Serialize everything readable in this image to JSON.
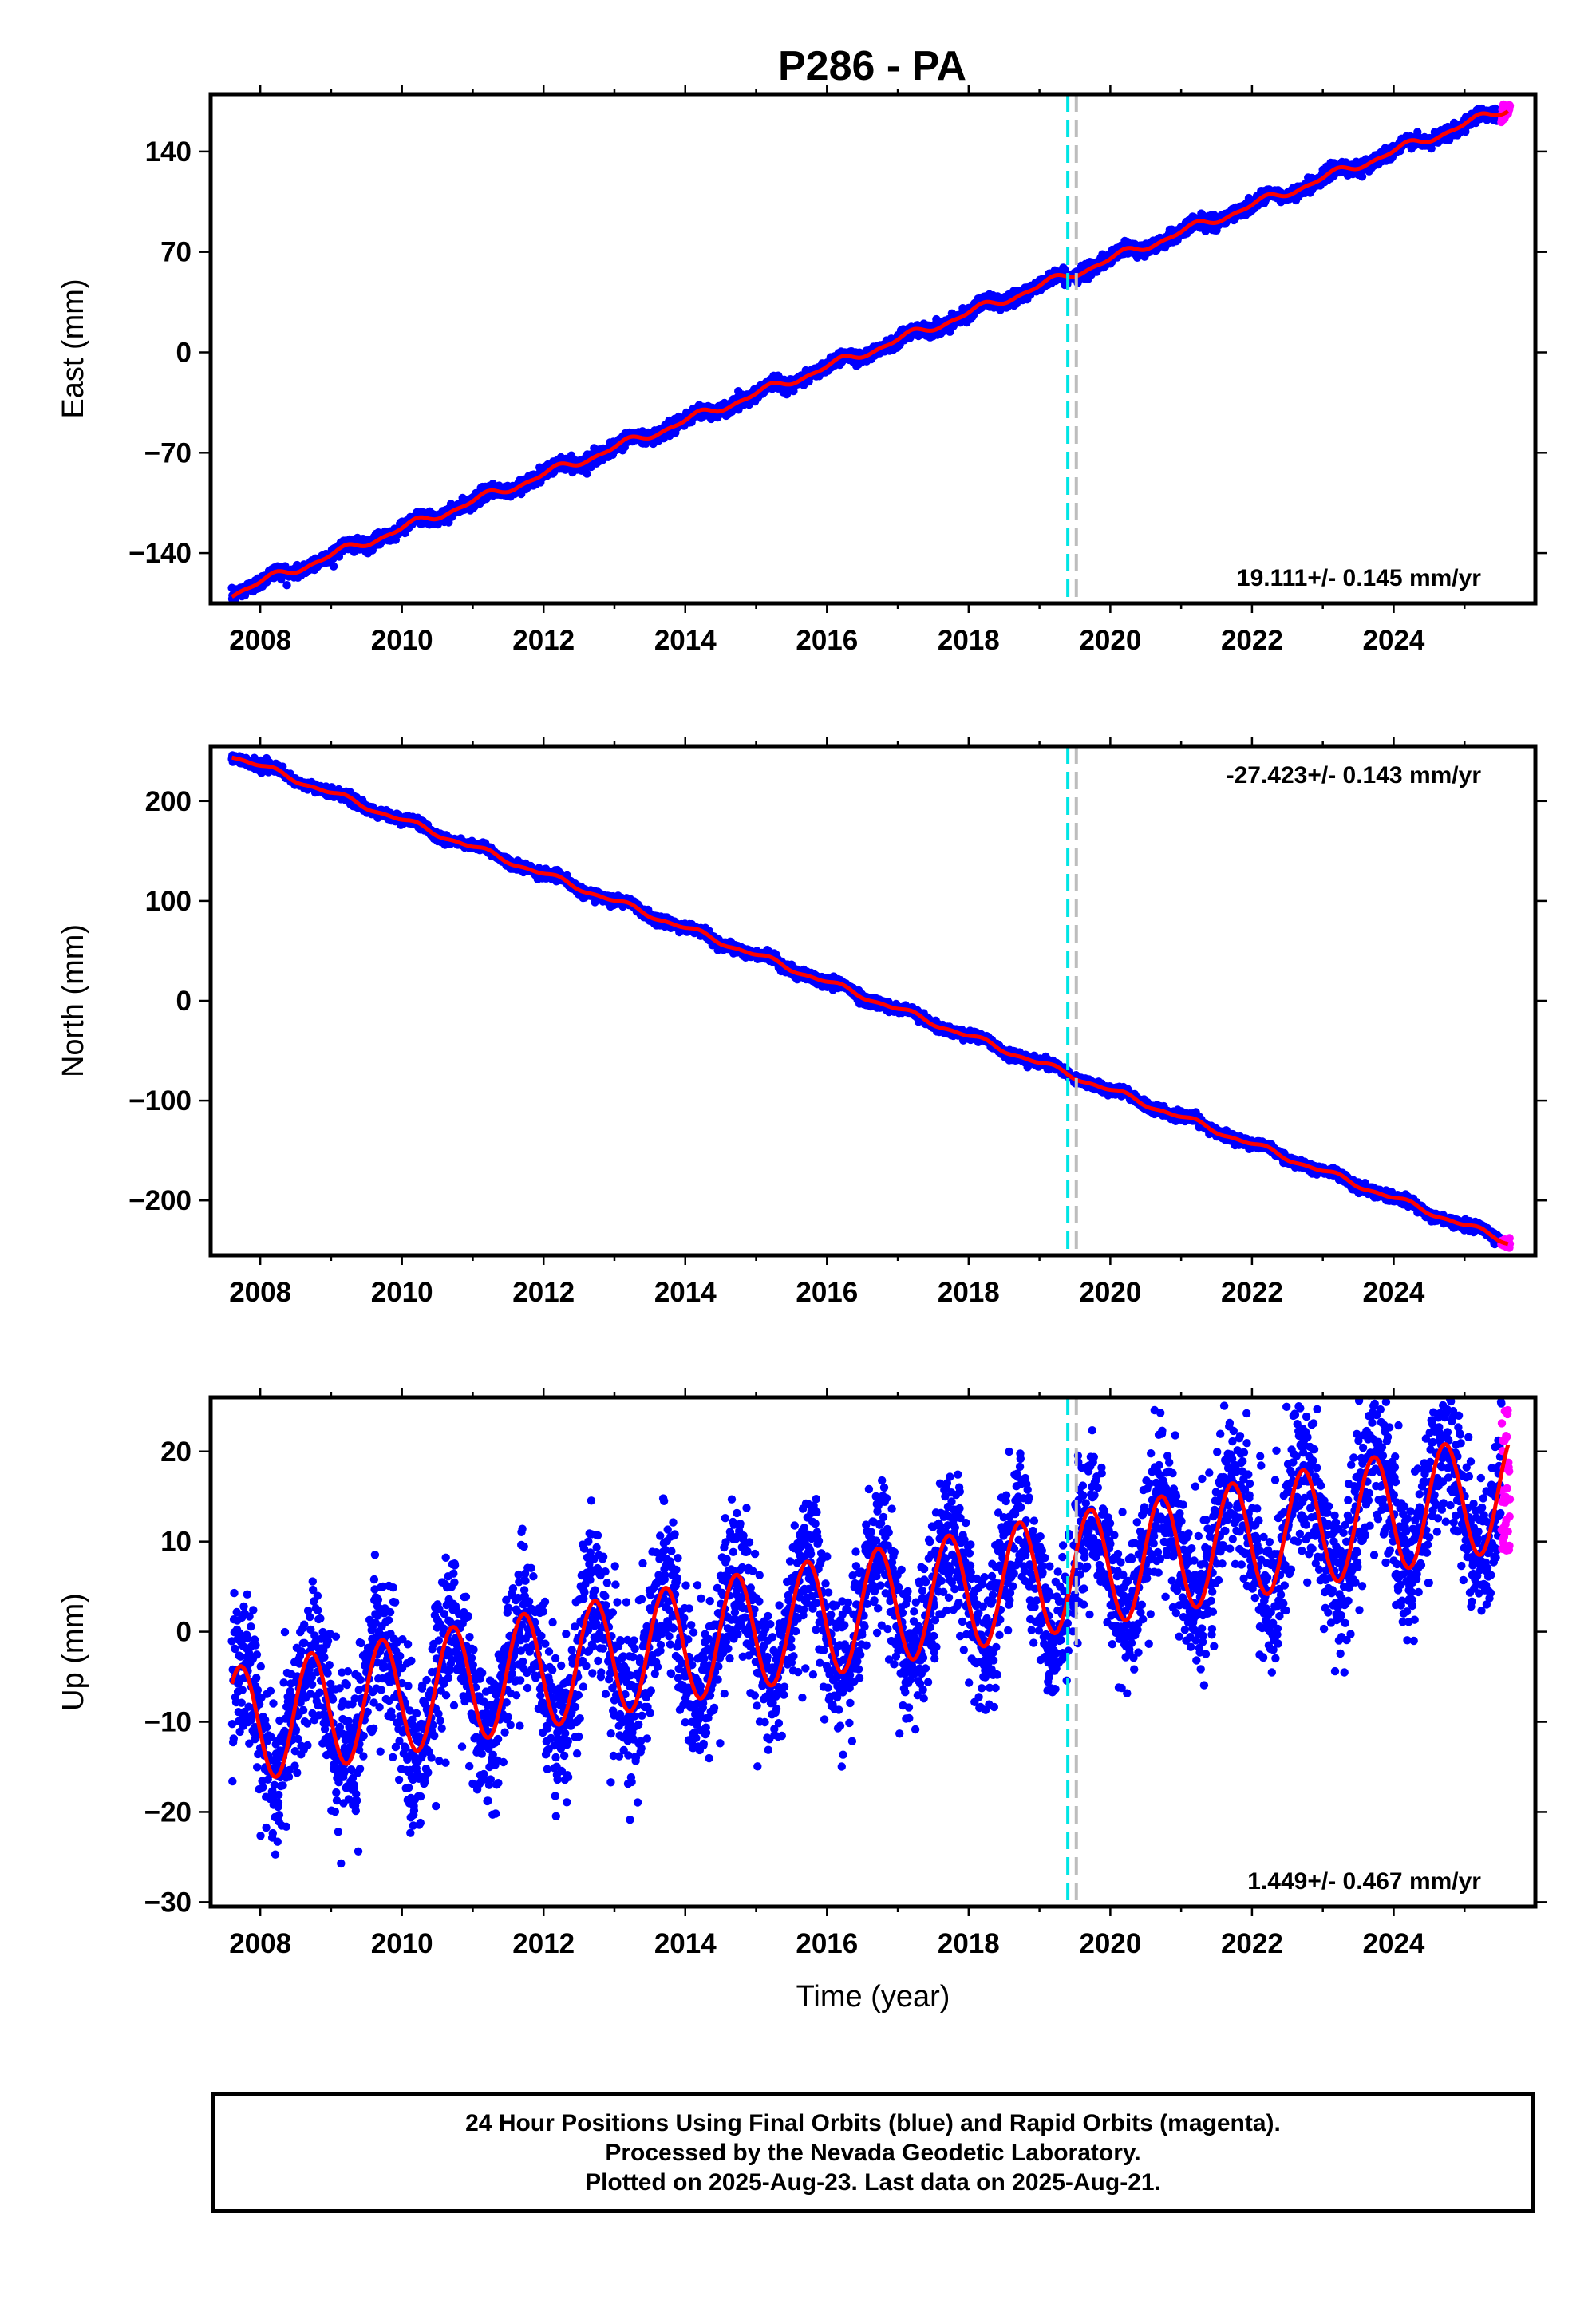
{
  "title": "P286 - PA",
  "colors": {
    "final_orbits": "#0000ff",
    "rapid_orbits": "#ff00ff",
    "model": "#ff0000",
    "event_cyan": "#00e5e5",
    "event_gray": "#bdbdbd"
  },
  "chart_data": [
    {
      "type": "scatter",
      "component": "East",
      "ylabel": "East (mm)",
      "xlim": [
        2007.3,
        2026.0
      ],
      "ylim": [
        -175,
        180
      ],
      "yticks": [
        -140,
        -70,
        0,
        70,
        140
      ],
      "xticks": [
        2008,
        2010,
        2012,
        2014,
        2016,
        2018,
        2020,
        2022,
        2024
      ],
      "rate_label": "19.111+/- 0.145 mm/yr",
      "rate_position": "bottom-right",
      "start": [
        2007.6,
        -168
      ],
      "end": [
        2025.6,
        170
      ],
      "vertical_events": [
        2019.4,
        2019.52
      ],
      "series": [
        {
          "values_desc": "daily positions, final orbits",
          "color": "#0000ff"
        },
        {
          "values_desc": "daily positions, rapid orbits",
          "color": "#ff00ff"
        },
        {
          "values_desc": "model fit",
          "color": "#ff0000"
        }
      ]
    },
    {
      "type": "scatter",
      "component": "North",
      "ylabel": "North (mm)",
      "xlim": [
        2007.3,
        2026.0
      ],
      "ylim": [
        -255,
        255
      ],
      "yticks": [
        -200,
        -100,
        0,
        100,
        200
      ],
      "xticks": [
        2008,
        2010,
        2012,
        2014,
        2016,
        2018,
        2020,
        2022,
        2024
      ],
      "rate_label": "-27.423+/- 0.143 mm/yr",
      "rate_position": "top-right",
      "start": [
        2007.6,
        246
      ],
      "end": [
        2025.6,
        -241
      ],
      "vertical_events": [
        2019.4,
        2019.52
      ],
      "series": [
        {
          "values_desc": "daily positions, final orbits",
          "color": "#0000ff"
        },
        {
          "values_desc": "daily positions, rapid orbits",
          "color": "#ff00ff"
        },
        {
          "values_desc": "model fit",
          "color": "#ff0000"
        }
      ]
    },
    {
      "type": "scatter",
      "component": "Up",
      "ylabel": "Up (mm)",
      "xlabel": "Time (year)",
      "xlim": [
        2007.3,
        2026.0
      ],
      "ylim": [
        -30.5,
        26
      ],
      "yticks": [
        -30,
        -20,
        -10,
        0,
        10,
        20
      ],
      "xticks": [
        2008,
        2010,
        2012,
        2014,
        2016,
        2018,
        2020,
        2022,
        2024
      ],
      "rate_label": "1.449+/- 0.467 mm/yr",
      "rate_position": "bottom-right",
      "seasonal_amplitude_mm": 6.5,
      "trend_mm_per_yr": 1.449,
      "vertical_events": [
        2019.4,
        2019.52
      ],
      "series": [
        {
          "values_desc": "daily positions, final orbits",
          "color": "#0000ff"
        },
        {
          "values_desc": "daily positions, rapid orbits",
          "color": "#ff00ff"
        },
        {
          "values_desc": "model fit",
          "color": "#ff0000"
        }
      ]
    }
  ],
  "footer": {
    "line1": "24 Hour Positions Using Final Orbits (blue) and Rapid Orbits (magenta).",
    "line2": "Processed by the Nevada Geodetic Laboratory.",
    "line3": "Plotted on 2025-Aug-23. Last data on 2025-Aug-21."
  }
}
